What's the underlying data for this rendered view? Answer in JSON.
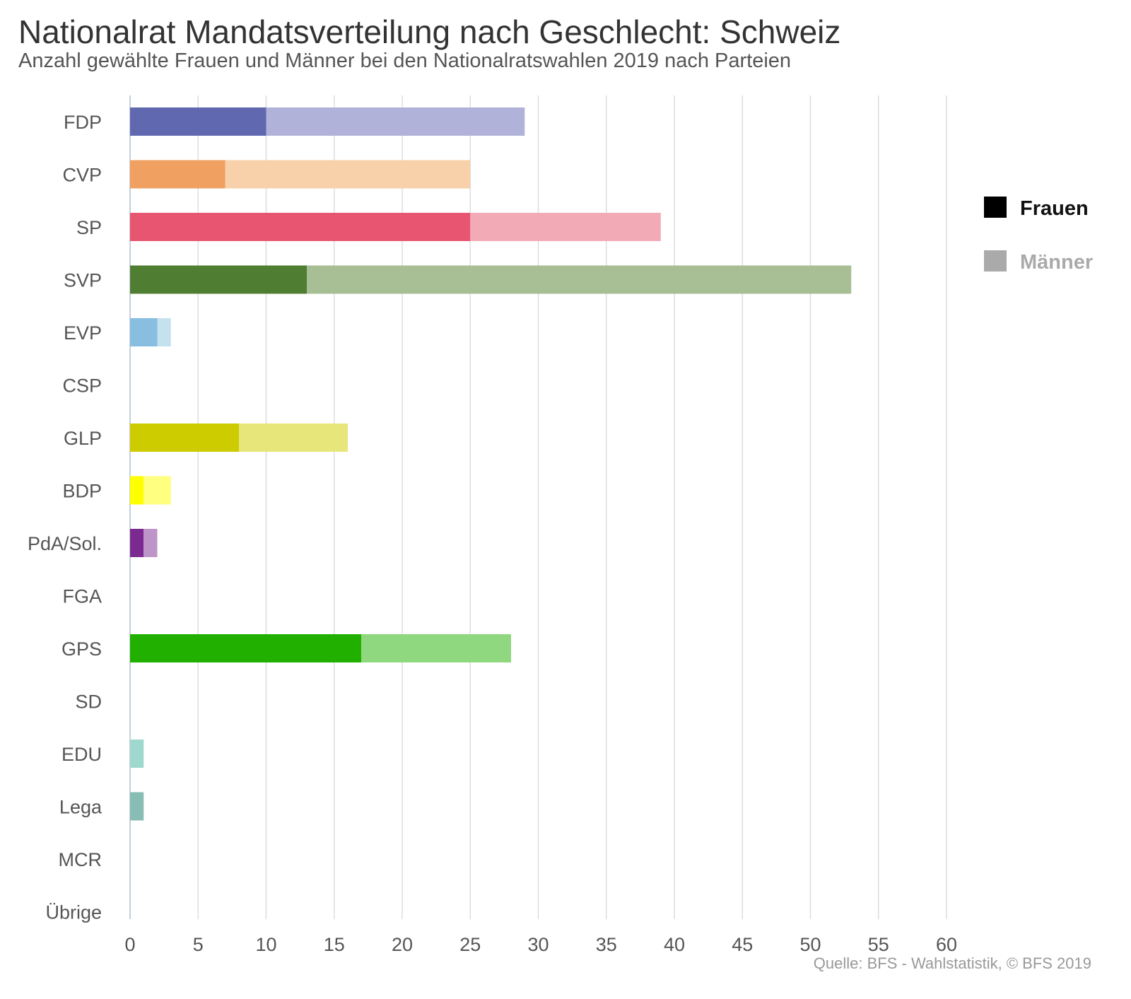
{
  "header": {
    "title": "Nationalrat Mandatsverteilung nach Geschlecht: Schweiz",
    "subtitle": "Anzahl gewählte Frauen und Männer bei den Nationalratswahlen 2019 nach Parteien"
  },
  "source": "Quelle: BFS - Wahlstatistik, © BFS 2019",
  "chart_data": {
    "type": "bar",
    "orientation": "horizontal",
    "stacked": true,
    "categories": [
      "FDP",
      "CVP",
      "SP",
      "SVP",
      "EVP",
      "CSP",
      "GLP",
      "BDP",
      "PdA/Sol.",
      "FGA",
      "GPS",
      "SD",
      "EDU",
      "Lega",
      "MCR",
      "Übrige"
    ],
    "series": [
      {
        "name": "Frauen",
        "values": [
          10,
          7,
          25,
          13,
          2,
          0,
          8,
          1,
          1,
          0,
          17,
          0,
          0,
          0,
          0,
          0
        ]
      },
      {
        "name": "Männer",
        "values": [
          19,
          18,
          14,
          40,
          1,
          0,
          8,
          2,
          1,
          0,
          11,
          0,
          1,
          1,
          0,
          0
        ]
      }
    ],
    "party_colors": {
      "FDP": [
        "#6068b0",
        "#b0b2d9"
      ],
      "CVP": [
        "#f0a060",
        "#f8d0aa"
      ],
      "SP": [
        "#e85570",
        "#f2aab6"
      ],
      "SVP": [
        "#4f7d32",
        "#a8bf95"
      ],
      "EVP": [
        "#88bfe0",
        "#c5e1f0"
      ],
      "CSP": [
        "#3aa0c0",
        "#a0d0e0"
      ],
      "GLP": [
        "#cccc00",
        "#e6e67a"
      ],
      "BDP": [
        "#ffff00",
        "#ffff80"
      ],
      "PdA/Sol.": [
        "#7b2a90",
        "#bd95c8"
      ],
      "FGA": [
        "#a03030",
        "#d09898"
      ],
      "GPS": [
        "#22b000",
        "#90d880"
      ],
      "SD": [
        "#8a6a40",
        "#c5b5a0"
      ],
      "EDU": [
        "#9fd8cf",
        "#9fd8cf"
      ],
      "Lega": [
        "#88bdb5",
        "#88bdb5"
      ],
      "MCR": [
        "#c08040",
        "#e0c0a0"
      ],
      "Übrige": [
        "#999999",
        "#cccccc"
      ]
    },
    "xticks": [
      0,
      5,
      10,
      15,
      20,
      25,
      30,
      35,
      40,
      45,
      50,
      55,
      60
    ],
    "xlim": [
      0,
      60
    ],
    "grid": true,
    "legend": {
      "position": "right",
      "items": [
        {
          "label": "Frauen",
          "color": "#000000",
          "text_color": "#111111"
        },
        {
          "label": "Männer",
          "color": "#aaaaaa",
          "text_color": "#aaaaaa"
        }
      ]
    }
  }
}
